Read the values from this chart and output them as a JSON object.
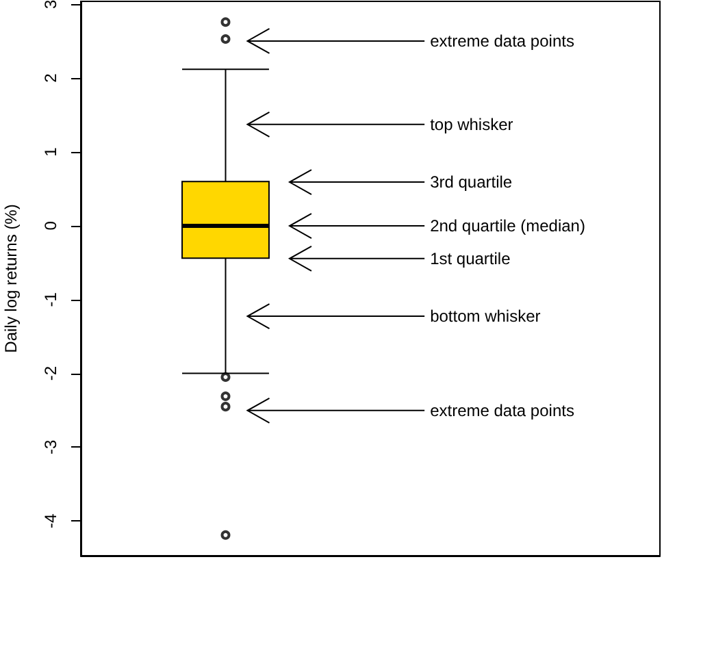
{
  "chart_data": {
    "type": "box",
    "ylabel": "Daily log returns (%)",
    "categories": [
      null
    ],
    "boxes": [
      {
        "low": -2.0,
        "q1": -0.44,
        "median": 0.0,
        "q3": 0.6,
        "high": 2.12,
        "outliers": [
          2.76,
          2.53,
          -2.05,
          -2.31,
          -2.45,
          -4.19
        ]
      }
    ],
    "color": "#ffd700",
    "ylim": [
      -4.47,
      3.04
    ],
    "yticks": [
      -4,
      -3,
      -2,
      -1,
      0,
      1,
      2,
      3
    ],
    "grid": false,
    "tick_labels": "y",
    "annotations": [
      "extreme data points",
      "top whisker",
      "3rd quartile",
      "2nd quartile (median)",
      "1st quartile",
      "bottom whisker",
      "extreme data points"
    ]
  }
}
